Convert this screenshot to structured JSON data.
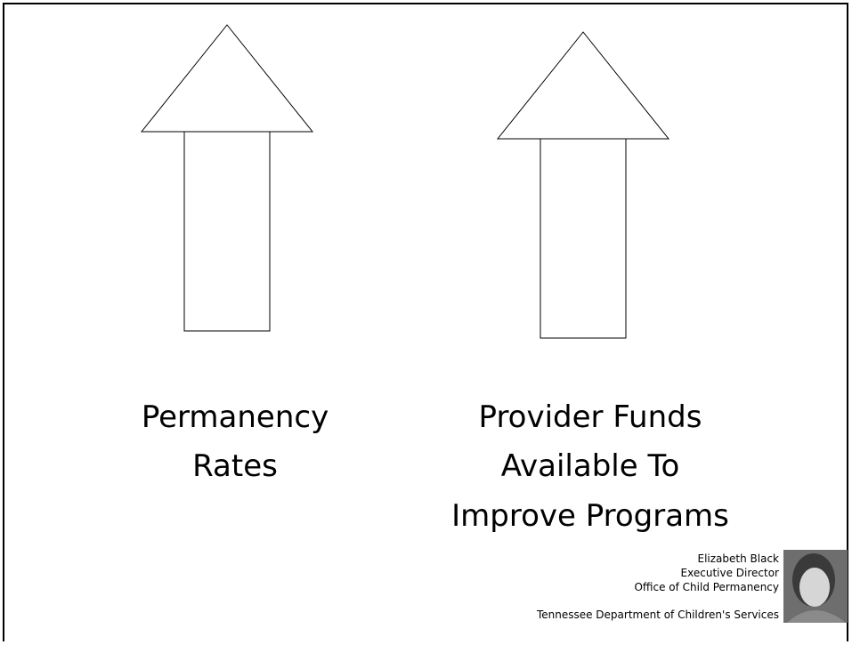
{
  "slide": {
    "items": [
      {
        "lines": [
          "Permanency",
          "Rates"
        ]
      },
      {
        "lines": [
          "Provider Funds",
          "Available To",
          "Improve Programs"
        ]
      }
    ],
    "presenter": {
      "name": "Elizabeth Black",
      "title": "Executive Director",
      "office": "Office of Child Permanency",
      "organization": "Tennessee Department of Children's Services"
    }
  }
}
